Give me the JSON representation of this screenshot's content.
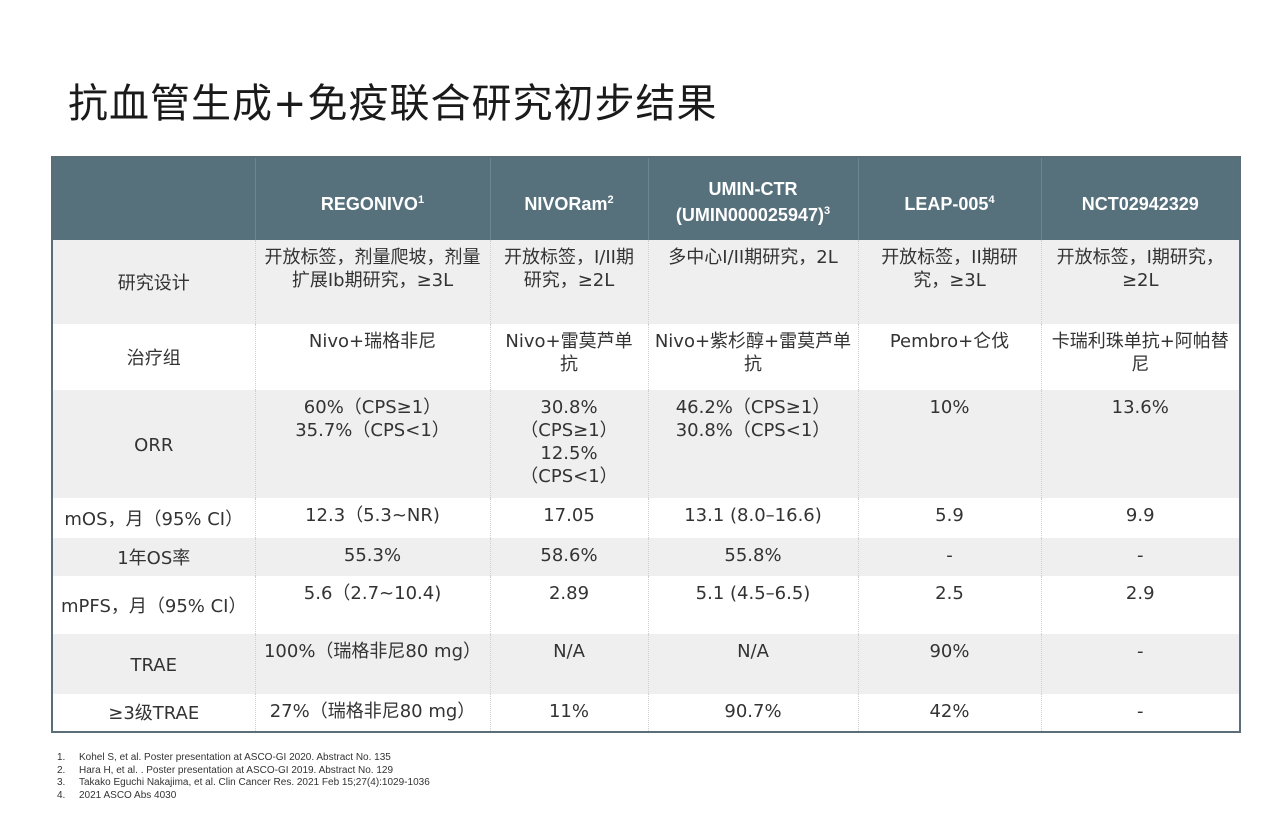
{
  "title": "抗血管生成+免疫联合研究初步结果",
  "table": {
    "columns": [
      {
        "label": "",
        "sup": ""
      },
      {
        "label": "REGONIVO",
        "sup": "1"
      },
      {
        "label": "NIVORam",
        "sup": "2"
      },
      {
        "label": "UMIN-CTR (UMIN000025947)",
        "sup": "3"
      },
      {
        "label": "LEAP-005",
        "sup": "4"
      },
      {
        "label": "NCT02942329",
        "sup": ""
      }
    ],
    "rows": [
      {
        "label": "研究设计",
        "cells": [
          "开放标签，剂量爬坡，剂量扩展Ib期研究，≥3L",
          "开放标签，I/II期研究，≥2L",
          "多中心I/II期研究，2L",
          "开放标签，II期研究，≥3L",
          "开放标签，I期研究，≥2L"
        ]
      },
      {
        "label": "治疗组",
        "cells": [
          "Nivo+瑞格非尼",
          "Nivo+雷莫芦单抗",
          "Nivo+紫杉醇+雷莫芦单抗",
          "Pembro+仑伐",
          "卡瑞利珠单抗+阿帕替尼"
        ]
      },
      {
        "label": "ORR",
        "cells": [
          "60%（CPS≥1）\n35.7%（CPS<1）",
          "30.8%（CPS≥1）\n12.5%（CPS<1）",
          "46.2%（CPS≥1）\n30.8%（CPS<1）",
          "10%",
          "13.6%"
        ]
      },
      {
        "label": "mOS，月（95% CI）",
        "cells": [
          "12.3（5.3~NR)",
          "17.05",
          "13.1 (8.0–16.6)",
          "5.9",
          "9.9"
        ]
      },
      {
        "label": "1年OS率",
        "cells": [
          "55.3%",
          "58.6%",
          "55.8%",
          "-",
          "-"
        ]
      },
      {
        "label": "mPFS，月（95% CI）",
        "cells": [
          "5.6（2.7~10.4)",
          "2.89",
          "5.1 (4.5–6.5)",
          "2.5",
          "2.9"
        ]
      },
      {
        "label": "TRAE",
        "cells": [
          "100%（瑞格非尼80 mg）",
          "N/A",
          "N/A",
          "90%",
          "-"
        ]
      },
      {
        "label": "≥3级TRAE",
        "cells": [
          "27%（瑞格非尼80 mg）",
          "11%",
          "90.7%",
          "42%",
          "-"
        ]
      }
    ]
  },
  "footnotes": [
    {
      "num": "1.",
      "text": "Kohel S, et al. Poster presentation at ASCO-GI 2020. Abstract No. 135"
    },
    {
      "num": "2.",
      "text": "Hara H, et al. . Poster presentation at ASCO-GI 2019. Abstract No. 129"
    },
    {
      "num": "3.",
      "text": "Takako Eguchi Nakajima, et al. Clin Cancer Res. 2021 Feb 15;27(4):1029-1036"
    },
    {
      "num": "4.",
      "text": "2021 ASCO Abs 4030"
    }
  ]
}
